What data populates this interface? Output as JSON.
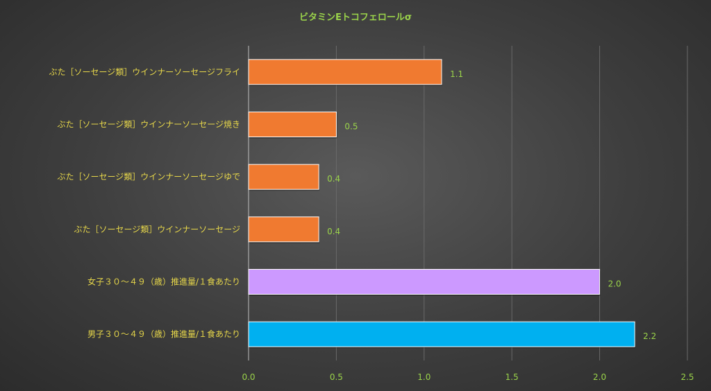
{
  "chart_data": {
    "type": "bar",
    "orientation": "horizontal",
    "title": "ビタミンEトコフェロールσ",
    "categories": [
      "ぶた［ソーセージ類］ウインナーソーセージフライ",
      "ぶた［ソーセージ類］ウインナーソーセージ焼き",
      "ぶた［ソーセージ類］ウインナーソーセージゆで",
      "ぶた［ソーセージ類］ウインナーソーセージ",
      "女子３０～４９（歳）推進量/１食あたり",
      "男子３０～４９（歳）推進量/１食あたり"
    ],
    "values": [
      1.1,
      0.5,
      0.4,
      0.4,
      2.0,
      2.2
    ],
    "value_labels": [
      "1.1",
      "0.5",
      "0.4",
      "0.4",
      "2.0",
      "2.2"
    ],
    "colors": [
      "#f07a30",
      "#f07a30",
      "#f07a30",
      "#f07a30",
      "#cc99ff",
      "#00b0f0"
    ],
    "xlim": [
      0,
      2.5
    ],
    "xticks": [
      "0.0",
      "0.5",
      "1.0",
      "1.5",
      "2.0",
      "2.5"
    ],
    "grid": true,
    "legend": "none"
  }
}
